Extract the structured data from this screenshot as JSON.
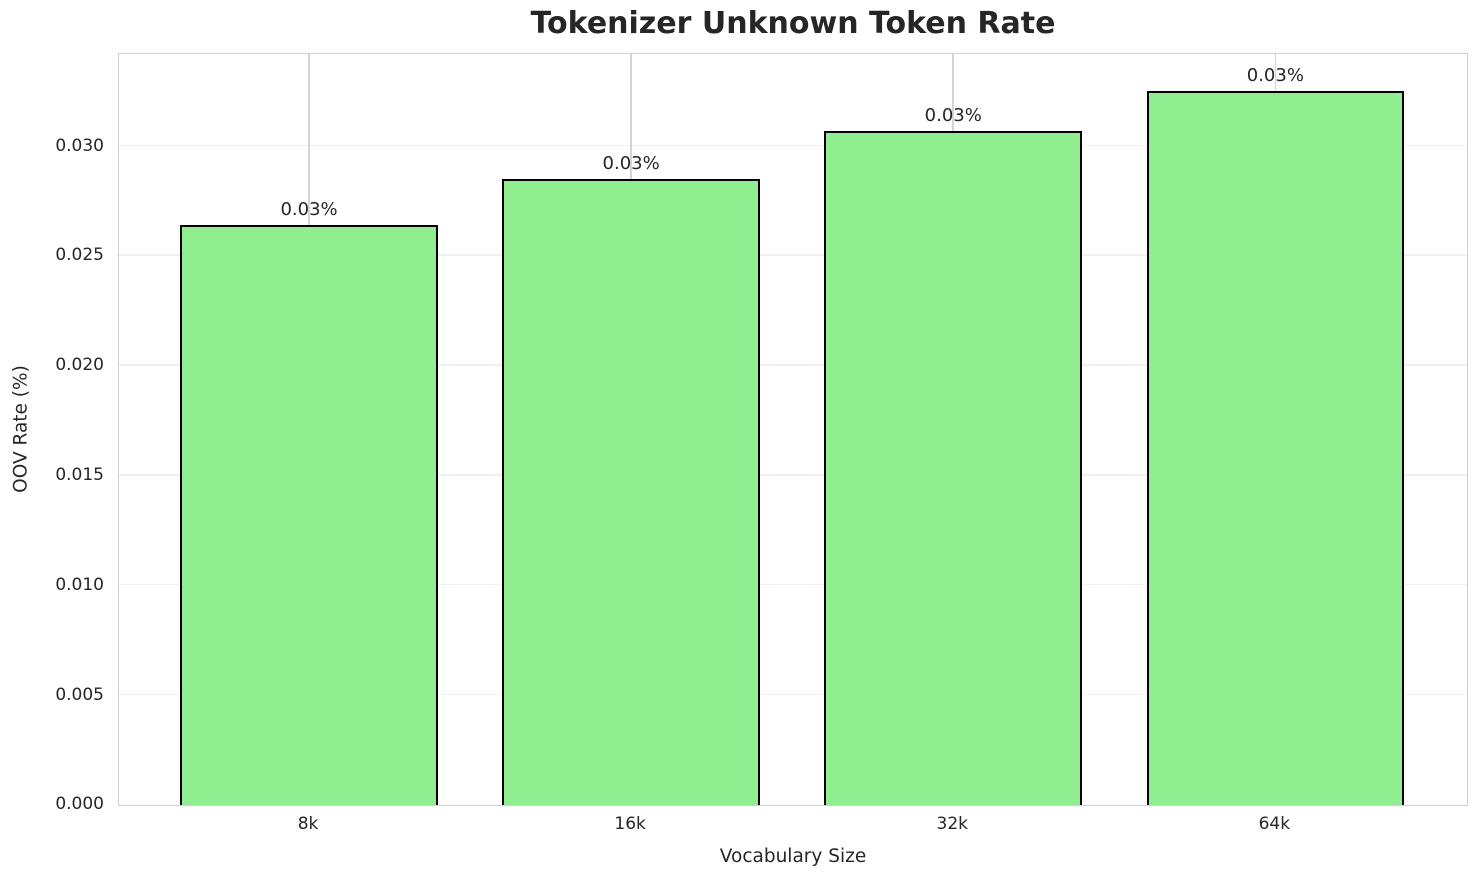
{
  "chart_data": {
    "type": "bar",
    "title": "Tokenizer Unknown Token Rate",
    "xlabel": "Vocabulary Size",
    "ylabel": "OOV Rate (%)",
    "categories": [
      "8k",
      "16k",
      "32k",
      "64k"
    ],
    "values": [
      0.0264,
      0.0285,
      0.0307,
      0.0325
    ],
    "bar_labels": [
      "0.03%",
      "0.03%",
      "0.03%",
      "0.03%"
    ],
    "yticks": {
      "values": [
        0.0,
        0.005,
        0.01,
        0.015,
        0.02,
        0.025,
        0.03
      ],
      "labels": [
        "0.000",
        "0.005",
        "0.010",
        "0.015",
        "0.020",
        "0.025",
        "0.030"
      ]
    },
    "ylim": [
      0,
      0.034125
    ],
    "xlim": [
      -0.59,
      3.59
    ],
    "bar_width_units": 0.8,
    "grid": true,
    "legend": "none",
    "colors": {
      "bar_fill": "#90EE90",
      "bar_edge": "#000000",
      "grid_horizontal": "#f0f0f0",
      "grid_vertical": "#d4d4d4",
      "spine": "#d0d0d0",
      "text": "#262626",
      "background": "#ffffff"
    }
  }
}
